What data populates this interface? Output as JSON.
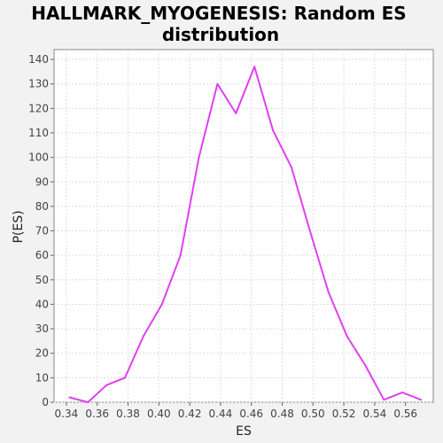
{
  "chart_data": {
    "type": "line",
    "title_lines": [
      "HALLMARK_MYOGENESIS: Random ES",
      "distribution"
    ],
    "xlabel": "ES",
    "ylabel": "P(ES)",
    "xlim": [
      0.332,
      0.578
    ],
    "ylim": [
      0,
      144
    ],
    "x_ticks": [
      0.34,
      0.36,
      0.38,
      0.4,
      0.42,
      0.44,
      0.46,
      0.48,
      0.5,
      0.52,
      0.54,
      0.56
    ],
    "x_tick_labels": [
      "0.34",
      "0.36",
      "0.38",
      "0.40",
      "0.42",
      "0.44",
      "0.46",
      "0.48",
      "0.50",
      "0.52",
      "0.54",
      "0.56"
    ],
    "y_ticks": [
      0,
      10,
      20,
      30,
      40,
      50,
      60,
      70,
      80,
      90,
      100,
      110,
      120,
      130,
      140
    ],
    "y_tick_labels": [
      "0",
      "10",
      "20",
      "30",
      "40",
      "50",
      "60",
      "70",
      "80",
      "90",
      "100",
      "110",
      "120",
      "130",
      "140"
    ],
    "grid": true,
    "series": [
      {
        "color": "#e040f0",
        "x": [
          0.342,
          0.354,
          0.366,
          0.378,
          0.39,
          0.402,
          0.414,
          0.426,
          0.438,
          0.45,
          0.462,
          0.474,
          0.486,
          0.498,
          0.51,
          0.522,
          0.534,
          0.546,
          0.558,
          0.57
        ],
        "y": [
          2,
          0,
          7,
          10,
          27,
          40,
          60,
          100,
          130,
          118,
          137,
          111,
          96,
          70,
          45,
          27,
          15,
          1,
          4,
          1
        ]
      }
    ]
  }
}
